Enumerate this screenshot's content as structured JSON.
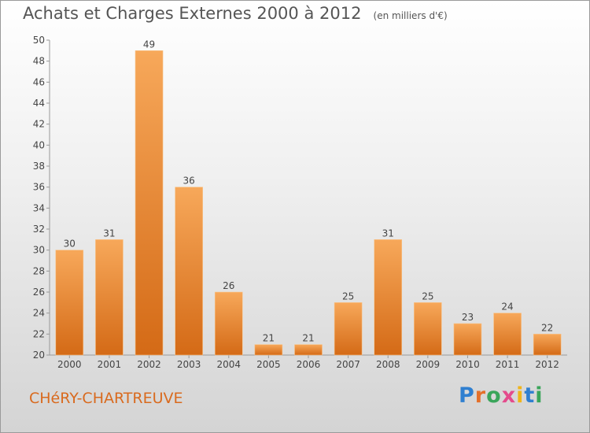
{
  "header": {
    "title": "Achats et Charges Externes 2000 à 2012",
    "subtitle": "(en milliers d'€)"
  },
  "footer": {
    "town": "CHéRY-CHARTREUVE",
    "logo": [
      "P",
      "r",
      "o",
      "x",
      "i",
      "t",
      "i"
    ]
  },
  "colors": {
    "bar_light": "#f7a85a",
    "bar_dark": "#d46a16",
    "accent_text": "#d96a1e"
  },
  "chart_data": {
    "type": "bar",
    "title": "Achats et Charges Externes 2000 à 2012",
    "subtitle": "(en milliers d'€)",
    "categories": [
      "2000",
      "2001",
      "2002",
      "2003",
      "2004",
      "2005",
      "2006",
      "2007",
      "2008",
      "2009",
      "2010",
      "2011",
      "2012"
    ],
    "values": [
      30,
      31,
      49,
      36,
      26,
      21,
      21,
      25,
      31,
      25,
      23,
      24,
      22
    ],
    "ylim": [
      20,
      50
    ],
    "yticks": [
      20,
      22,
      24,
      26,
      28,
      30,
      32,
      34,
      36,
      38,
      40,
      42,
      44,
      46,
      48,
      50
    ],
    "xlabel": "",
    "ylabel": "",
    "grid": false,
    "data_labels": true
  }
}
